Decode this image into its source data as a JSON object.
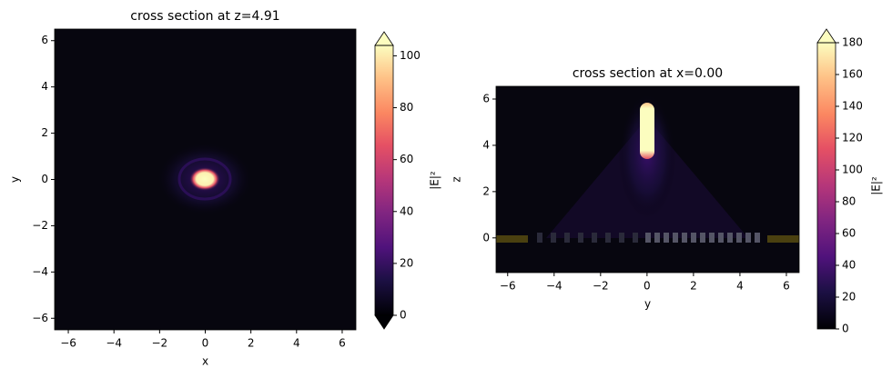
{
  "chart_data": [
    {
      "type": "heatmap",
      "title": "cross section at z=4.91",
      "xlabel": "x",
      "ylabel": "y",
      "colormap": "magma",
      "xlim": [
        -6.6,
        6.6
      ],
      "ylim": [
        -6.5,
        6.5
      ],
      "xticks": [
        {
          "value": -6,
          "label": "−6"
        },
        {
          "value": -4,
          "label": "−4"
        },
        {
          "value": -2,
          "label": "−2"
        },
        0,
        2,
        4,
        6
      ],
      "yticks": [
        {
          "value": -6,
          "label": "−6"
        },
        {
          "value": -4,
          "label": "−4"
        },
        {
          "value": -2,
          "label": "−2"
        },
        0,
        2,
        4,
        6
      ],
      "colorbar": {
        "label": "|E|²",
        "lim": [
          0,
          104
        ],
        "ticks": [
          0,
          20,
          40,
          60,
          80,
          100
        ],
        "extend": "both"
      }
    },
    {
      "type": "heatmap",
      "title": "cross section at x=0.00",
      "xlabel": "y",
      "ylabel": "z",
      "colormap": "magma",
      "xlim": [
        -6.5,
        6.55
      ],
      "ylim": [
        -1.5,
        6.55
      ],
      "xticks": [
        {
          "value": -6,
          "label": "−6"
        },
        {
          "value": -4,
          "label": "−4"
        },
        {
          "value": -2,
          "label": "−2"
        },
        0,
        2,
        4,
        6
      ],
      "yticks": [
        0,
        2,
        4,
        6
      ],
      "colorbar": {
        "label": "|E|²",
        "lim": [
          0,
          180
        ],
        "ticks": [
          0,
          20,
          40,
          60,
          80,
          100,
          120,
          140,
          160,
          180
        ],
        "extend": "max"
      }
    }
  ]
}
